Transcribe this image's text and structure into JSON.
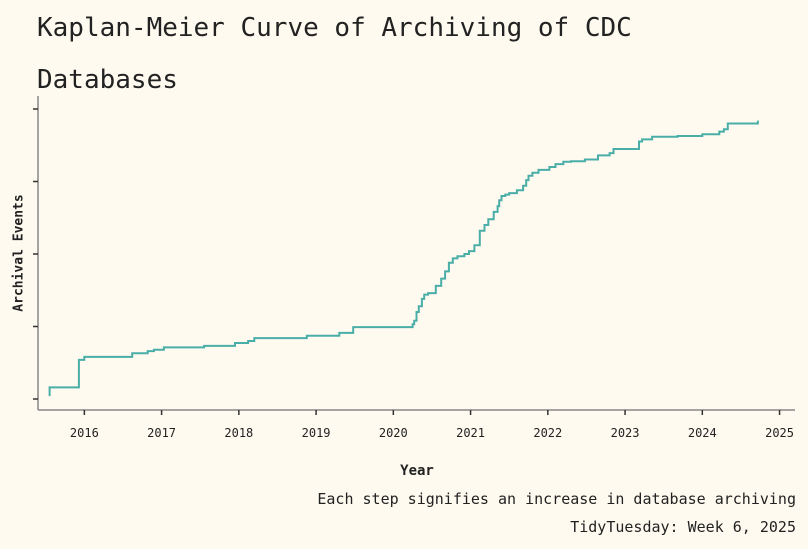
{
  "title": "Kaplan-Meier Curve of Archiving of CDC Databases",
  "caption_line1": "Each step signifies an increase in database archiving",
  "caption_line2": "TidyTuesday: Week 6, 2025",
  "colors": {
    "background": "#fefaef",
    "line": "#4aaea8",
    "axis": "#888888"
  },
  "chart_data": {
    "type": "line",
    "step": true,
    "title": "Kaplan-Meier Curve of Archiving of CDC Databases",
    "xlabel": "Year",
    "ylabel": "Archival Events",
    "x_tick_labels": [
      "2016",
      "2017",
      "2018",
      "2019",
      "2020",
      "2021",
      "2022",
      "2023",
      "2024",
      "2025"
    ],
    "xlim": [
      2015.4,
      2025.2
    ],
    "ylim": [
      0,
      1.05
    ],
    "y_tick_values": [
      0,
      0.25,
      0.5,
      0.75,
      1.0
    ],
    "y_tick_labels_shown": false,
    "grid": false,
    "series": [
      {
        "x": [
          2015.55,
          2015.55,
          2015.93,
          2015.93,
          2016.0,
          2016.62,
          2016.82,
          2016.9,
          2017.03,
          2017.55,
          2017.95,
          2018.12,
          2018.2,
          2018.88,
          2019.3,
          2019.48,
          2020.25,
          2020.27,
          2020.3,
          2020.33,
          2020.37,
          2020.4,
          2020.45,
          2020.55,
          2020.62,
          2020.67,
          2020.72,
          2020.77,
          2020.83,
          2020.92,
          2020.98,
          2021.05,
          2021.12,
          2021.18,
          2021.23,
          2021.3,
          2021.35,
          2021.37,
          2021.4,
          2021.45,
          2021.5,
          2021.6,
          2021.68,
          2021.72,
          2021.75,
          2021.8,
          2021.88,
          2022.02,
          2022.1,
          2022.2,
          2022.3,
          2022.48,
          2022.65,
          2022.8,
          2022.85,
          2023.18,
          2023.22,
          2023.35,
          2023.68,
          2024.0,
          2024.22,
          2024.28,
          2024.33,
          2024.7,
          2024.72
        ],
        "y": [
          0.01,
          0.04,
          0.04,
          0.135,
          0.145,
          0.158,
          0.165,
          0.17,
          0.178,
          0.183,
          0.193,
          0.2,
          0.21,
          0.218,
          0.228,
          0.248,
          0.258,
          0.27,
          0.3,
          0.32,
          0.345,
          0.36,
          0.365,
          0.39,
          0.415,
          0.44,
          0.47,
          0.485,
          0.492,
          0.5,
          0.51,
          0.53,
          0.58,
          0.6,
          0.62,
          0.645,
          0.665,
          0.685,
          0.7,
          0.705,
          0.71,
          0.72,
          0.735,
          0.755,
          0.77,
          0.78,
          0.79,
          0.8,
          0.81,
          0.818,
          0.82,
          0.826,
          0.84,
          0.848,
          0.862,
          0.888,
          0.895,
          0.904,
          0.907,
          0.913,
          0.922,
          0.93,
          0.95,
          0.95,
          0.96
        ]
      }
    ]
  }
}
